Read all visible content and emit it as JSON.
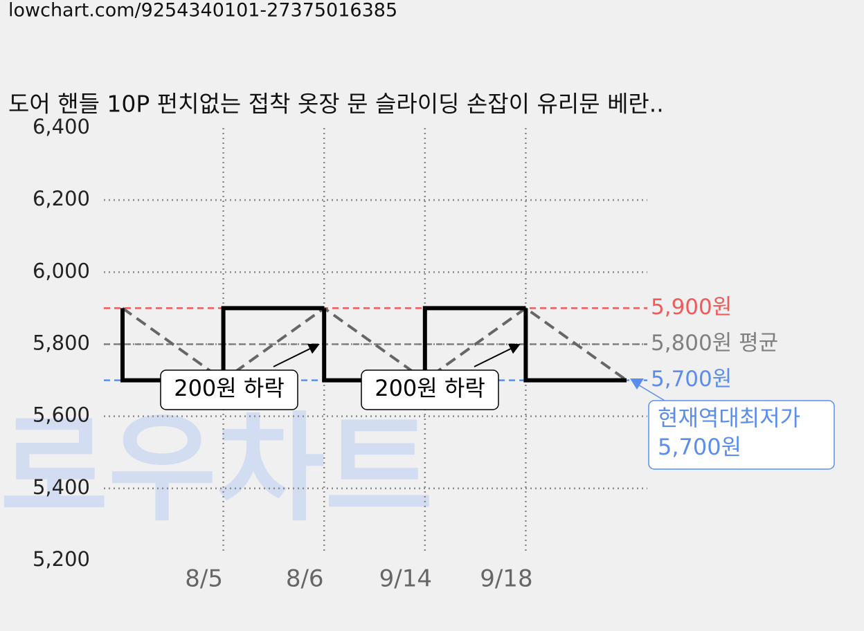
{
  "url": "lowchart.com/9254340101-27375016385",
  "watermark": "로우차트",
  "chart_data": {
    "type": "step",
    "title": "도어 핸들 10P 펀치없는 접착 옷장 문 슬라이딩 손잡이 유리문 베란..",
    "categories": [
      null,
      "8/5",
      "8/6",
      "9/14",
      "9/18",
      null
    ],
    "series": [
      {
        "color": "#000000",
        "values": [
          5900,
          5700,
          5900,
          5700,
          5900,
          5700
        ]
      }
    ],
    "ylim": [
      5200,
      6400
    ],
    "yticks": [
      {
        "value": 5200,
        "label": "5,200"
      },
      {
        "value": 5400,
        "label": "5,400"
      },
      {
        "value": 5600,
        "label": "5,600"
      },
      {
        "value": 5800,
        "label": "5,800"
      },
      {
        "value": 6000,
        "label": "6,000"
      },
      {
        "value": 6200,
        "label": "6,200"
      },
      {
        "value": 6400,
        "label": "6,400"
      }
    ],
    "grid": true,
    "reference_lines": [
      {
        "value": 5900,
        "label": "5,900원",
        "color": "#f05a5a"
      },
      {
        "value": 5800,
        "label": "5,800원 평균",
        "color": "#808080"
      },
      {
        "value": 5700,
        "label": "5,700원",
        "color": "#5b8def"
      }
    ],
    "annotations": [
      {
        "text": "200원 하락"
      },
      {
        "text": "200원 하락"
      }
    ],
    "callout": {
      "lines": [
        "현재역대최저가",
        "5,700원"
      ],
      "color": "#5b8def"
    }
  }
}
